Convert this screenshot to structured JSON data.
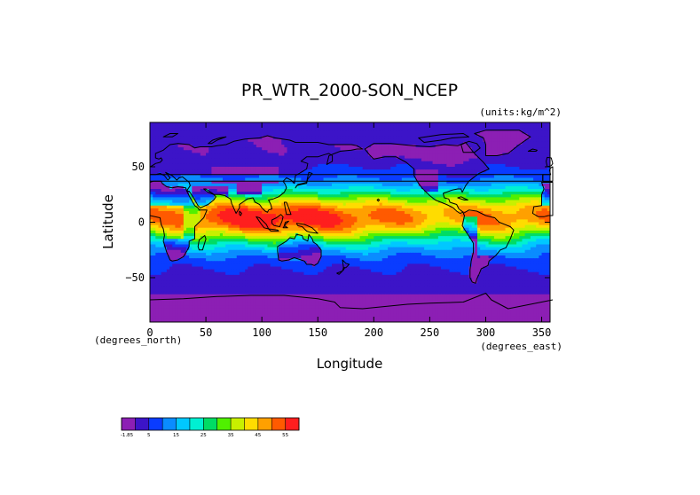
{
  "chart_data": {
    "type": "heatmap",
    "title": "PR_WTR_2000-SON_NCEP",
    "units_label": "(units:kg/m^2)",
    "xlabel": "Longitude",
    "ylabel": "Latitude",
    "x_unit_label": "(degrees_east)",
    "y_unit_label": "(degrees_north)",
    "xlim": [
      0,
      357.5
    ],
    "ylim": [
      -90,
      90
    ],
    "x_ticks": [
      0,
      50,
      100,
      150,
      200,
      250,
      300,
      350
    ],
    "y_ticks": [
      50,
      0,
      -50
    ],
    "x_tick_labels": [
      "0",
      "50",
      "100",
      "150",
      "200",
      "250",
      "300",
      "350"
    ],
    "y_tick_labels": [
      "50",
      "0",
      "−50"
    ],
    "grid": false,
    "colorbar": {
      "labels": [
        "-1.85",
        "5",
        "15",
        "25",
        "35",
        "45",
        "55"
      ],
      "levels": [
        -1.85,
        0,
        5,
        10,
        15,
        20,
        25,
        30,
        35,
        40,
        45,
        50,
        55
      ],
      "colors": [
        "#8c1fb4",
        "#3c14c8",
        "#0a3cff",
        "#0a8cff",
        "#00c8ff",
        "#00f0d2",
        "#00dc64",
        "#50f000",
        "#c8f000",
        "#ffdc00",
        "#ffa000",
        "#ff5a00",
        "#ff1e1e"
      ]
    }
  }
}
